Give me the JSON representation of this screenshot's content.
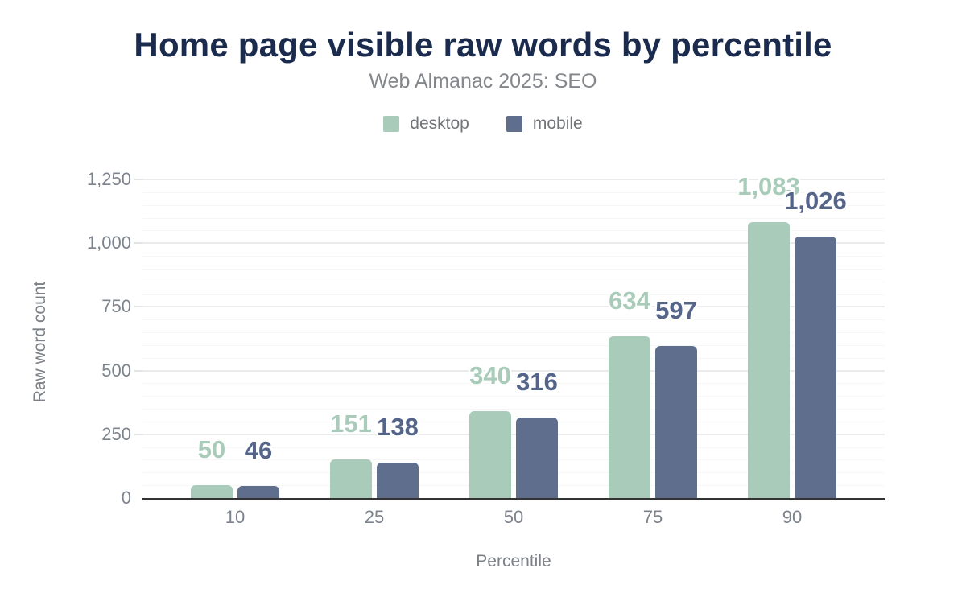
{
  "title": "Home page visible raw words by percentile",
  "subtitle": "Web Almanac 2025: SEO",
  "colors": {
    "title_text": "#1b2b4d",
    "muted_text": "#83878c",
    "axis_text": "#7d838c",
    "axis_line": "#333333",
    "grid_major": "#ebebeb",
    "grid_minor": "#f6f6f6",
    "desktop": "#a9cbba",
    "mobile": "#5f6e8c",
    "desktop_label": "#a9cbba",
    "mobile_label": "#55658a"
  },
  "chart_data": {
    "type": "bar",
    "title": "Home page visible raw words by percentile",
    "subtitle": "Web Almanac 2025: SEO",
    "categories": [
      "10",
      "25",
      "50",
      "75",
      "90"
    ],
    "series": [
      {
        "name": "desktop",
        "color": "#a9cbba",
        "label_color": "#a9cbba",
        "values": [
          50,
          151,
          340,
          634,
          1083
        ],
        "value_labels": [
          "50",
          "151",
          "340",
          "634",
          "1,083"
        ]
      },
      {
        "name": "mobile",
        "color": "#5f6e8c",
        "label_color": "#55658a",
        "values": [
          46,
          138,
          316,
          597,
          1026
        ],
        "value_labels": [
          "46",
          "138",
          "316",
          "597",
          "1,026"
        ]
      }
    ],
    "xlabel": "Percentile",
    "ylabel": "Raw word count",
    "ylim": [
      0,
      1250
    ],
    "yticks": [
      0,
      250,
      500,
      750,
      1000,
      1250
    ],
    "ytick_labels": [
      "0",
      "250",
      "500",
      "750",
      "1,000",
      "1,250"
    ],
    "minor_grid_step": 50,
    "grid": true,
    "legend_position": "top"
  }
}
